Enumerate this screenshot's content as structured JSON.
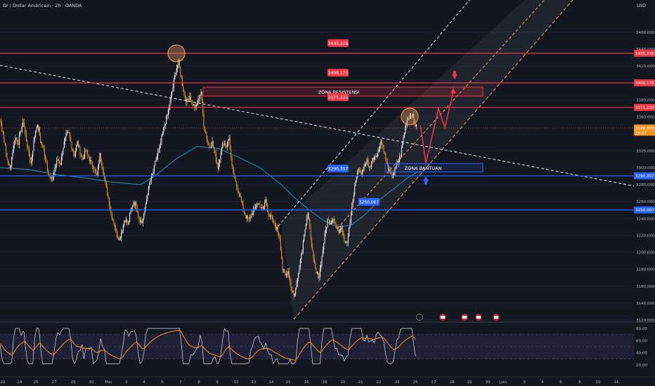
{
  "header": {
    "title": "Or / Dollar Américain · 2h · OANDA"
  },
  "colors": {
    "bg": "#131722",
    "grid": "#1e222d",
    "up": "#ffffff",
    "down": "#f5a023",
    "red": "#f23645",
    "blue": "#2962ff",
    "orange": "#f7a35c",
    "ma": "#2a8fbd",
    "rsi": "#e0e0e0",
    "rsi_ma": "#f7931e"
  },
  "price_axis": {
    "currency": "USD",
    "ticks": [
      "3460,000",
      "3440,000",
      "3420,000",
      "3400,000",
      "3380,000",
      "3360,000",
      "3340,000",
      "3320,000",
      "3300,000",
      "3280,000",
      "3260,000",
      "3240,000",
      "3220,000",
      "3200,000",
      "3180,000",
      "3160,000",
      "3140,000",
      "3120,000"
    ],
    "current_price": "3346,900",
    "countdown": "29:57"
  },
  "rsi_axis": {
    "ticks": [
      "80,00",
      "60,00",
      "40,00",
      "20,00"
    ]
  },
  "time_axis": {
    "labels": [
      "23",
      "24",
      "25",
      "27",
      "29",
      "30",
      "Mai",
      "2",
      "4",
      "6",
      "7",
      "8",
      "9",
      "12",
      "13",
      "14",
      "15",
      "16",
      "19",
      "20",
      "21",
      "22",
      "23",
      "25",
      "27",
      "28",
      "29",
      "30",
      "Juin",
      "3",
      "4",
      "6",
      "8",
      "10",
      "11"
    ]
  },
  "levels": [
    {
      "id": "r1",
      "value": 3435.226,
      "label": "3435,226",
      "color": "#f23645"
    },
    {
      "id": "r2",
      "value": 3400.175,
      "label": "3400,175",
      "color": "#f23645"
    },
    {
      "id": "r3",
      "value": 3371.22,
      "label": "3371,220",
      "color": "#f23645"
    },
    {
      "id": "s1",
      "value": 3290.357,
      "label": "3290,357",
      "color": "#2962ff"
    },
    {
      "id": "s2",
      "value": 3250.067,
      "label": "3250,067",
      "color": "#2962ff"
    }
  ],
  "zones": {
    "resistance": "ZONA RESISTENSI",
    "support": "ZONA BANTUAN"
  },
  "chart_data": {
    "type": "candlestick",
    "title": "Or / Dollar Américain · 2h · OANDA",
    "ylim": [
      3120,
      3470
    ],
    "close_path": [
      [
        0,
        3358
      ],
      [
        3,
        3345
      ],
      [
        6,
        3332
      ],
      [
        10,
        3310
      ],
      [
        14,
        3298
      ],
      [
        18,
        3320
      ],
      [
        22,
        3335
      ],
      [
        26,
        3330
      ],
      [
        30,
        3345
      ],
      [
        33,
        3355
      ],
      [
        36,
        3340
      ],
      [
        40,
        3320
      ],
      [
        44,
        3305
      ],
      [
        48,
        3330
      ],
      [
        52,
        3350
      ],
      [
        55,
        3345
      ],
      [
        58,
        3330
      ],
      [
        62,
        3322
      ],
      [
        66,
        3305
      ],
      [
        70,
        3290
      ],
      [
        74,
        3285
      ],
      [
        78,
        3300
      ],
      [
        82,
        3310
      ],
      [
        86,
        3305
      ],
      [
        90,
        3325
      ],
      [
        94,
        3338
      ],
      [
        98,
        3340
      ],
      [
        102,
        3325
      ],
      [
        106,
        3315
      ],
      [
        110,
        3330
      ],
      [
        114,
        3318
      ],
      [
        118,
        3310
      ],
      [
        122,
        3320
      ],
      [
        126,
        3312
      ],
      [
        130,
        3305
      ],
      [
        134,
        3300
      ],
      [
        138,
        3290
      ],
      [
        142,
        3315
      ],
      [
        146,
        3300
      ],
      [
        150,
        3280
      ],
      [
        154,
        3265
      ],
      [
        158,
        3245
      ],
      [
        162,
        3235
      ],
      [
        166,
        3222
      ],
      [
        170,
        3215
      ],
      [
        174,
        3228
      ],
      [
        178,
        3240
      ],
      [
        182,
        3232
      ],
      [
        186,
        3248
      ],
      [
        190,
        3260
      ],
      [
        194,
        3255
      ],
      [
        198,
        3240
      ],
      [
        202,
        3235
      ],
      [
        206,
        3250
      ],
      [
        210,
        3270
      ],
      [
        214,
        3285
      ],
      [
        218,
        3295
      ],
      [
        222,
        3310
      ],
      [
        226,
        3320
      ],
      [
        230,
        3335
      ],
      [
        234,
        3350
      ],
      [
        238,
        3362
      ],
      [
        242,
        3378
      ],
      [
        246,
        3395
      ],
      [
        250,
        3415
      ],
      [
        254,
        3425
      ],
      [
        258,
        3405
      ],
      [
        262,
        3385
      ],
      [
        266,
        3378
      ],
      [
        270,
        3385
      ],
      [
        274,
        3375
      ],
      [
        278,
        3370
      ],
      [
        282,
        3380
      ],
      [
        286,
        3390
      ],
      [
        290,
        3350
      ],
      [
        294,
        3335
      ],
      [
        298,
        3325
      ],
      [
        302,
        3330
      ],
      [
        306,
        3315
      ],
      [
        310,
        3300
      ],
      [
        314,
        3318
      ],
      [
        318,
        3330
      ],
      [
        322,
        3325
      ],
      [
        326,
        3335
      ],
      [
        330,
        3300
      ],
      [
        334,
        3285
      ],
      [
        338,
        3275
      ],
      [
        342,
        3265
      ],
      [
        346,
        3250
      ],
      [
        350,
        3242
      ],
      [
        354,
        3238
      ],
      [
        358,
        3245
      ],
      [
        362,
        3250
      ],
      [
        366,
        3258
      ],
      [
        370,
        3255
      ],
      [
        374,
        3250
      ],
      [
        378,
        3262
      ],
      [
        382,
        3245
      ],
      [
        386,
        3240
      ],
      [
        390,
        3232
      ],
      [
        394,
        3228
      ],
      [
        398,
        3218
      ],
      [
        402,
        3180
      ],
      [
        406,
        3172
      ],
      [
        410,
        3178
      ],
      [
        414,
        3160
      ],
      [
        418,
        3148
      ],
      [
        422,
        3162
      ],
      [
        426,
        3185
      ],
      [
        430,
        3205
      ],
      [
        434,
        3230
      ],
      [
        438,
        3245
      ],
      [
        442,
        3220
      ],
      [
        446,
        3190
      ],
      [
        450,
        3175
      ],
      [
        454,
        3172
      ],
      [
        458,
        3195
      ],
      [
        462,
        3220
      ],
      [
        466,
        3238
      ],
      [
        470,
        3235
      ],
      [
        474,
        3242
      ],
      [
        478,
        3230
      ],
      [
        482,
        3225
      ],
      [
        486,
        3232
      ],
      [
        490,
        3215
      ],
      [
        494,
        3212
      ],
      [
        498,
        3235
      ],
      [
        502,
        3260
      ],
      [
        506,
        3285
      ],
      [
        510,
        3300
      ],
      [
        514,
        3292
      ],
      [
        518,
        3302
      ],
      [
        522,
        3308
      ],
      [
        526,
        3300
      ],
      [
        530,
        3310
      ],
      [
        534,
        3315
      ],
      [
        538,
        3318
      ],
      [
        542,
        3332
      ],
      [
        546,
        3320
      ],
      [
        550,
        3305
      ],
      [
        554,
        3295
      ],
      [
        558,
        3290
      ],
      [
        562,
        3298
      ],
      [
        566,
        3305
      ],
      [
        570,
        3315
      ],
      [
        574,
        3335
      ],
      [
        578,
        3355
      ],
      [
        582,
        3360
      ],
      [
        586,
        3365
      ],
      [
        590,
        3352
      ],
      [
        594,
        3347
      ]
    ],
    "annotations": [
      "ZONA RESISTENSI",
      "ZONA BANTUAN"
    ]
  }
}
